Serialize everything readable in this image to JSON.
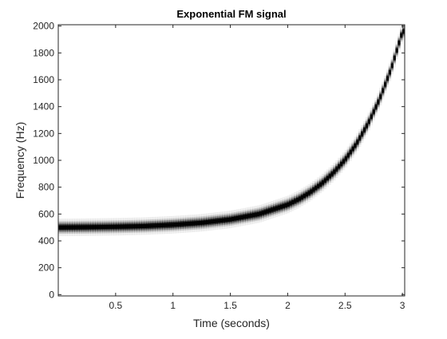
{
  "chart_data": {
    "type": "heatmap",
    "title": "Exponential FM signal",
    "xlabel": "Time (seconds)",
    "ylabel": "Frequency (Hz)",
    "xlim": [
      0,
      3.02
    ],
    "ylim": [
      -10,
      2010
    ],
    "xticks": [
      "0.5",
      "1",
      "1.5",
      "2",
      "2.5",
      "3"
    ],
    "yticks": [
      "0",
      "200",
      "400",
      "600",
      "800",
      "1000",
      "1200",
      "1400",
      "1600",
      "1800",
      "2000"
    ],
    "grid": false,
    "colormap": "gray (inverted)",
    "ridge": {
      "name": "instantaneous frequency",
      "x": [
        0,
        0.25,
        0.5,
        0.75,
        1.0,
        1.25,
        1.5,
        1.75,
        2.0,
        2.1,
        2.2,
        2.3,
        2.4,
        2.5,
        2.6,
        2.7,
        2.8,
        2.9,
        3.0
      ],
      "y": [
        500,
        502,
        505,
        510,
        520,
        535,
        560,
        600,
        670,
        712,
        765,
        830,
        910,
        1005,
        1125,
        1275,
        1455,
        1680,
        1960
      ]
    }
  },
  "colors": {
    "background": "#ffffff",
    "axis": "#262626",
    "ridge_peak": "#000000"
  }
}
